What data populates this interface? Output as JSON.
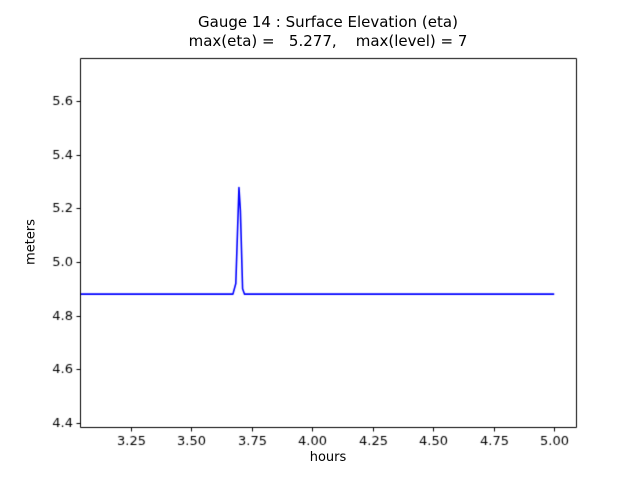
{
  "chart_data": {
    "type": "line",
    "title": "Gauge 14 : Surface Elevation (eta)",
    "subtitle": "max(eta) =   5.277,    max(level) = 7",
    "gauge_number": 14,
    "max_eta": 5.277,
    "max_level": 7,
    "xlabel": "hours",
    "ylabel": "meters",
    "xlim": [
      3.04,
      5.09
    ],
    "ylim": [
      4.385,
      5.76
    ],
    "xticks": [
      3.25,
      3.5,
      3.75,
      4.0,
      4.25,
      4.5,
      4.75,
      5.0
    ],
    "xtick_labels": [
      "3.25",
      "3.50",
      "3.75",
      "4.00",
      "4.25",
      "4.50",
      "4.75",
      "5.00"
    ],
    "yticks": [
      4.4,
      4.6,
      4.8,
      5.0,
      5.2,
      5.4,
      5.6
    ],
    "ytick_labels": [
      "4.4",
      "4.6",
      "4.8",
      "5.0",
      "5.2",
      "5.4",
      "5.6"
    ],
    "grid": false,
    "legend": "none",
    "line_color": "#0000ff",
    "axis_color": "#000000",
    "baseline_value": 4.88,
    "peak_x": 3.7,
    "peak_y": 5.277,
    "series": [
      {
        "name": "eta",
        "x": [
          3.04,
          3.672,
          3.684,
          3.697,
          3.703,
          3.712,
          3.72,
          5.0
        ],
        "y": [
          4.88,
          4.88,
          4.92,
          5.277,
          5.19,
          4.9,
          4.88,
          4.88
        ]
      }
    ]
  }
}
